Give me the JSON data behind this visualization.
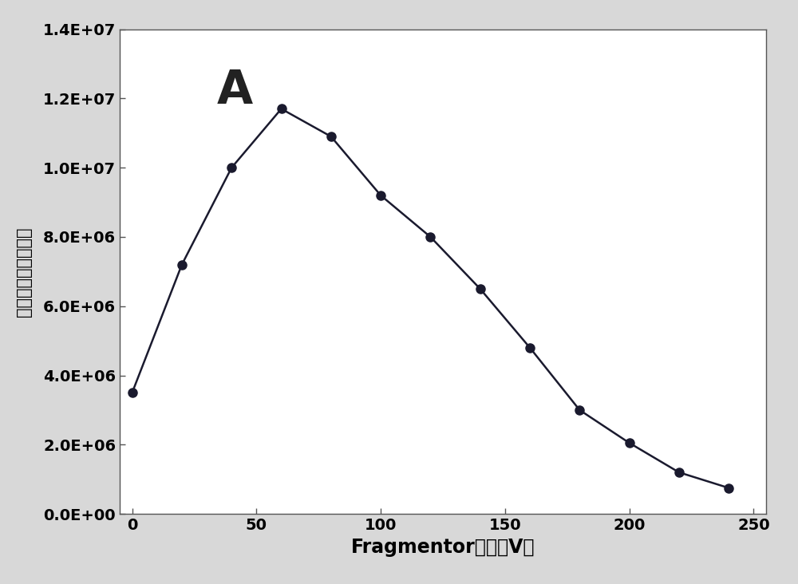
{
  "x": [
    0,
    20,
    40,
    60,
    80,
    100,
    120,
    140,
    160,
    180,
    200,
    220,
    240
  ],
  "y": [
    3500000.0,
    7200000.0,
    10000000.0,
    11700000.0,
    10900000.0,
    9200000.0,
    8000000.0,
    6500000.0,
    4800000.0,
    3000000.0,
    2050000.0,
    1200000.0,
    750000.0
  ],
  "xlabel": "Fragmentor电压（V）",
  "ylabel": "峰与额外消旋峰面积",
  "annotation": "A",
  "line_color": "#1a1a2e",
  "marker_color": "#1a1a2e",
  "outer_bg_color": "#d8d8d8",
  "inner_bg_color": "#ffffff",
  "plot_bg_color": "#ffffff",
  "border_color": "#888888",
  "ylim": [
    0,
    14000000.0
  ],
  "xlim": [
    -5,
    255
  ],
  "xticks": [
    0,
    50,
    100,
    150,
    200,
    250
  ],
  "yticks": [
    0,
    2000000.0,
    4000000.0,
    6000000.0,
    8000000.0,
    10000000.0,
    12000000.0,
    14000000.0
  ],
  "ytick_labels": [
    "0.0E+00",
    "2.0E+06",
    "4.0E+06",
    "6.0E+06",
    "8.0E+06",
    "1.0E+07",
    "1.2E+07",
    "1.4E+07"
  ],
  "annotation_fontsize": 42,
  "xlabel_fontsize": 17,
  "ylabel_fontsize": 15,
  "tick_fontsize": 14
}
